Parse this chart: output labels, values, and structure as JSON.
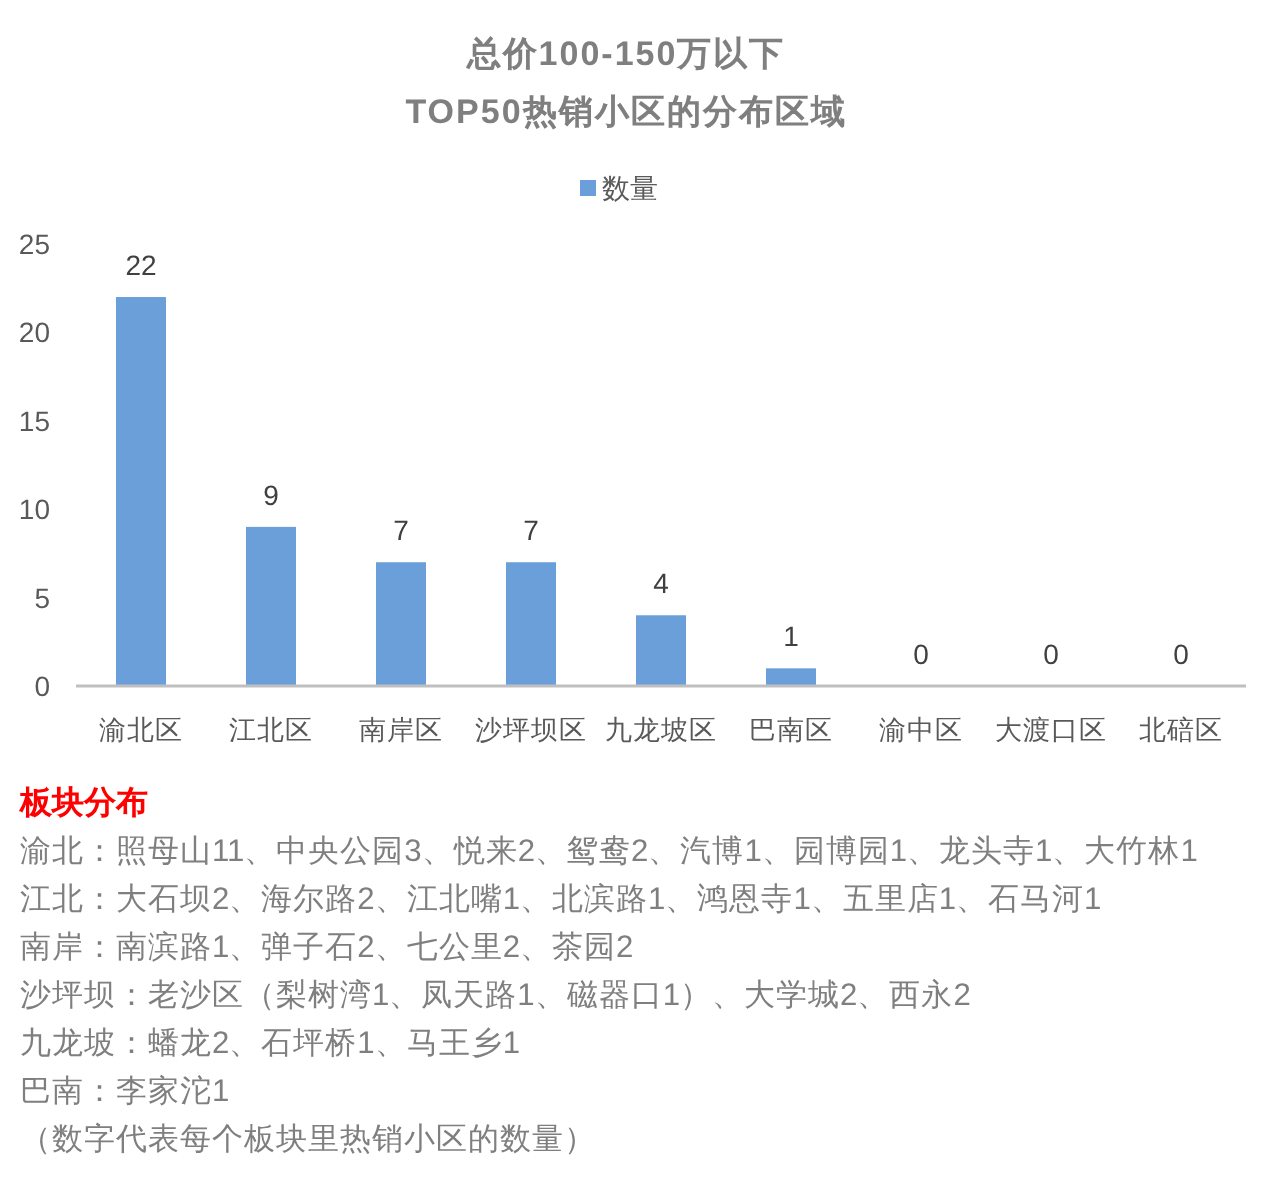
{
  "chart_data": {
    "type": "bar",
    "title": "总价100-150万以下\nTOP50热销小区的分布区域",
    "categories": [
      "渝北区",
      "江北区",
      "南岸区",
      "沙坪坝区",
      "九龙坡区",
      "巴南区",
      "渝中区",
      "大渡口区",
      "北碚区"
    ],
    "series": [
      {
        "name": "数量",
        "color": "#6a9fd9",
        "values": [
          22,
          9,
          7,
          7,
          4,
          1,
          0,
          0,
          0
        ]
      }
    ],
    "ylim": [
      0,
      25
    ],
    "yticks": [
      0,
      5,
      10,
      15,
      20,
      25
    ],
    "data_labels": true,
    "legend": "top",
    "annotations": [
      "板块分布",
      "渝北：照母山11、中央公园3、悦来2、鸳鸯2、汽博1、园博园1、龙头寺1、大竹林1",
      "江北：大石坝2、海尔路2、江北嘴1、北滨路1、鸿恩寺1、五里店1、石马河1",
      "南岸：南滨路1、弹子石2、七公里2、茶园2",
      "沙坪坝：老沙区（梨树湾1、凤天路1、磁器口1）、大学城2、西永2",
      "九龙坡：蟠龙2、石坪桥1、马王乡1",
      "巴南：李家沱1",
      "（数字代表每个板块里热销小区的数量）"
    ]
  }
}
